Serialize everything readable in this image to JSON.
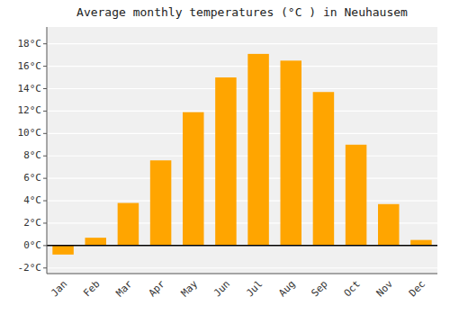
{
  "chart_data": {
    "type": "bar",
    "title": "Average monthly temperatures (°C ) in Neuhausem",
    "categories": [
      "Jan",
      "Feb",
      "Mar",
      "Apr",
      "May",
      "Jun",
      "Jul",
      "Aug",
      "Sep",
      "Oct",
      "Nov",
      "Dec"
    ],
    "values": [
      -0.8,
      0.7,
      3.8,
      7.6,
      11.9,
      15.0,
      17.1,
      16.5,
      13.7,
      9.0,
      3.7,
      0.5
    ],
    "color": "#FFA500",
    "ylim": [
      -2.5,
      19.5
    ],
    "yticks": [
      {
        "value": -2,
        "label": "-2°C"
      },
      {
        "value": 0,
        "label": "0°C"
      },
      {
        "value": 2,
        "label": "2°C"
      },
      {
        "value": 4,
        "label": "4°C"
      },
      {
        "value": 6,
        "label": "6°C"
      },
      {
        "value": 8,
        "label": "8°C"
      },
      {
        "value": 10,
        "label": "10°C"
      },
      {
        "value": 12,
        "label": "12°C"
      },
      {
        "value": 14,
        "label": "14°C"
      },
      {
        "value": 16,
        "label": "16°C"
      },
      {
        "value": 18,
        "label": "18°C"
      }
    ],
    "grid": true
  }
}
